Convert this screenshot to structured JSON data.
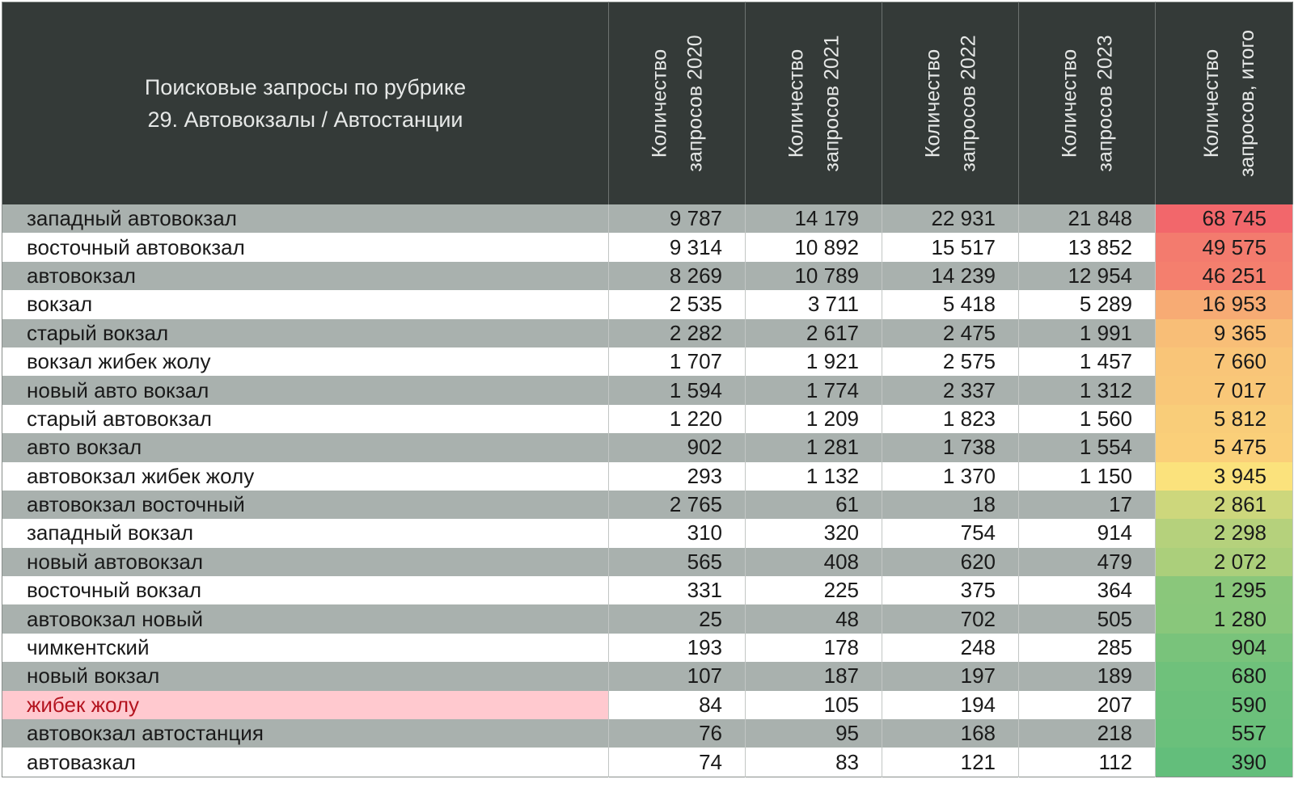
{
  "chart_data": {
    "type": "table",
    "title_lines": [
      "Поисковые запросы по рубрике",
      "29. Автовокзалы / Автостанции"
    ],
    "columns": [
      [
        "Количество",
        "запросов 2020"
      ],
      [
        "Количество",
        "запросов 2021"
      ],
      [
        "Количество",
        "запросов 2022"
      ],
      [
        "Количество",
        "запросов 2023"
      ],
      [
        "Количество",
        "запросов, итого"
      ]
    ],
    "rows": [
      {
        "query": "западный автовокзал",
        "values": [
          "9 787",
          "14 179",
          "22 931",
          "21 848"
        ],
        "total": "68 745",
        "total_num": 68745
      },
      {
        "query": "восточный автовокзал",
        "values": [
          "9 314",
          "10 892",
          "15 517",
          "13 852"
        ],
        "total": "49 575",
        "total_num": 49575
      },
      {
        "query": "автовокзал",
        "values": [
          "8 269",
          "10 789",
          "14 239",
          "12 954"
        ],
        "total": "46 251",
        "total_num": 46251
      },
      {
        "query": "вокзал",
        "values": [
          "2 535",
          "3 711",
          "5 418",
          "5 289"
        ],
        "total": "16 953",
        "total_num": 16953
      },
      {
        "query": "старый вокзал",
        "values": [
          "2 282",
          "2 617",
          "2 475",
          "1 991"
        ],
        "total": "9 365",
        "total_num": 9365
      },
      {
        "query": "вокзал жибек жолу",
        "values": [
          "1 707",
          "1 921",
          "2 575",
          "1 457"
        ],
        "total": "7 660",
        "total_num": 7660
      },
      {
        "query": "новый авто вокзал",
        "values": [
          "1 594",
          "1 774",
          "2 337",
          "1 312"
        ],
        "total": "7 017",
        "total_num": 7017
      },
      {
        "query": "старый автовокзал",
        "values": [
          "1 220",
          "1 209",
          "1 823",
          "1 560"
        ],
        "total": "5 812",
        "total_num": 5812
      },
      {
        "query": "авто вокзал",
        "values": [
          "902",
          "1 281",
          "1 738",
          "1 554"
        ],
        "total": "5 475",
        "total_num": 5475
      },
      {
        "query": "автовокзал жибек жолу",
        "values": [
          "293",
          "1 132",
          "1 370",
          "1 150"
        ],
        "total": "3 945",
        "total_num": 3945
      },
      {
        "query": "автовокзал восточный",
        "values": [
          "2 765",
          "61",
          "18",
          "17"
        ],
        "total": "2 861",
        "total_num": 2861
      },
      {
        "query": "западный вокзал",
        "values": [
          "310",
          "320",
          "754",
          "914"
        ],
        "total": "2 298",
        "total_num": 2298
      },
      {
        "query": "новый автовокзал",
        "values": [
          "565",
          "408",
          "620",
          "479"
        ],
        "total": "2 072",
        "total_num": 2072
      },
      {
        "query": "восточный вокзал",
        "values": [
          "331",
          "225",
          "375",
          "364"
        ],
        "total": "1 295",
        "total_num": 1295
      },
      {
        "query": "автовокзал новый",
        "values": [
          "25",
          "48",
          "702",
          "505"
        ],
        "total": "1 280",
        "total_num": 1280
      },
      {
        "query": "чимкентский",
        "values": [
          "193",
          "178",
          "248",
          "285"
        ],
        "total": "904",
        "total_num": 904
      },
      {
        "query": "новый вокзал",
        "values": [
          "107",
          "187",
          "197",
          "189"
        ],
        "total": "680",
        "total_num": 680
      },
      {
        "query": "жибек жолу",
        "values": [
          "84",
          "105",
          "194",
          "207"
        ],
        "total": "590",
        "total_num": 590,
        "highlight": true
      },
      {
        "query": "автовокзал автостанция",
        "values": [
          "76",
          "95",
          "168",
          "218"
        ],
        "total": "557",
        "total_num": 557
      },
      {
        "query": "автовазкал",
        "values": [
          "74",
          "83",
          "121",
          "112"
        ],
        "total": "390",
        "total_num": 390
      }
    ],
    "colors": {
      "header_bg": "#343a38",
      "header_text": "#e6e8e7",
      "row_stripe": "#a9b1ae",
      "row_plain": "#ffffff",
      "highlight_bg": "#ffc9cf",
      "highlight_text": "#b3141f",
      "scale_high": "#f2676b",
      "scale_mid": "#fbe27c",
      "scale_low": "#63be7b"
    }
  }
}
